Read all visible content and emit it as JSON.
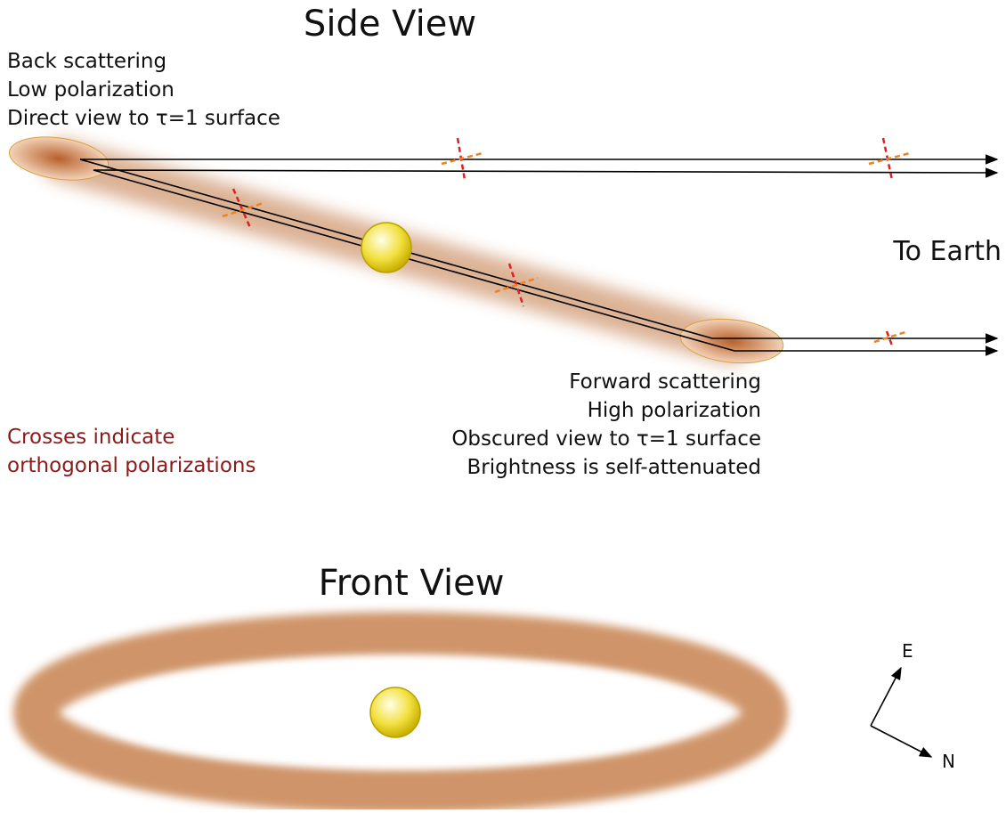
{
  "side_view": {
    "title": "Side View",
    "back_notes": [
      "Back scattering",
      "Low polarization",
      "Direct view to τ=1 surface"
    ],
    "forward_notes": [
      "Forward scattering",
      "High polarization",
      "Obscured view to τ=1 surface",
      "Brightness is self-attenuated"
    ],
    "destination": "To Earth",
    "legend_note": [
      "Crosses indicate",
      "orthogonal polarizations"
    ]
  },
  "front_view": {
    "title": "Front View",
    "compass": {
      "east": "E",
      "north": "N"
    }
  }
}
